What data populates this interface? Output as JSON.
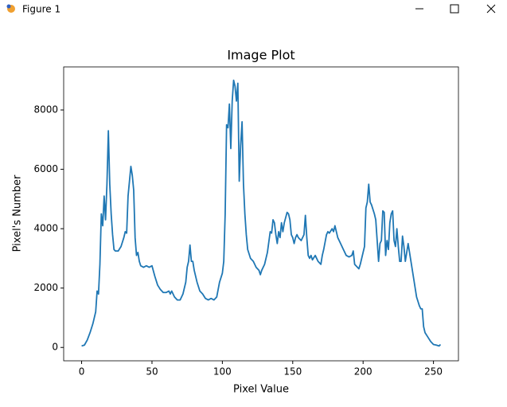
{
  "window": {
    "title": "Figure 1"
  },
  "chart_data": {
    "type": "line",
    "title": "Image Plot",
    "x_label": "Pixel Value",
    "y_label": "Pixel's Number",
    "color": "#1f77b4",
    "x": [
      0,
      2,
      4,
      6,
      8,
      10,
      11,
      12,
      13,
      14,
      15,
      16,
      17,
      18,
      19,
      20,
      21,
      22,
      23,
      24,
      26,
      28,
      30,
      31,
      32,
      33,
      35,
      36,
      37,
      38,
      39,
      40,
      41,
      42,
      44,
      46,
      48,
      50,
      52,
      54,
      56,
      58,
      60,
      62,
      63,
      64,
      66,
      68,
      70,
      72,
      74,
      75,
      76,
      77,
      78,
      79,
      80,
      82,
      84,
      86,
      88,
      90,
      92,
      94,
      96,
      98,
      100,
      101,
      102,
      103,
      104,
      105,
      106,
      107,
      108,
      109,
      110,
      111,
      112,
      113,
      114,
      115,
      116,
      117,
      118,
      120,
      122,
      124,
      126,
      127,
      128,
      130,
      132,
      134,
      135,
      136,
      137,
      138,
      139,
      140,
      141,
      142,
      143,
      144,
      146,
      147,
      148,
      149,
      150,
      151,
      152,
      153,
      154,
      156,
      158,
      159,
      160,
      161,
      162,
      163,
      164,
      166,
      168,
      170,
      171,
      172,
      174,
      175,
      176,
      178,
      179,
      180,
      182,
      184,
      186,
      188,
      190,
      192,
      193,
      194,
      196,
      197,
      198,
      200,
      201,
      202,
      203,
      204,
      205,
      206,
      208,
      209,
      210,
      211,
      212,
      213,
      214,
      215,
      216,
      217,
      218,
      219,
      220,
      221,
      222,
      223,
      224,
      225,
      226,
      227,
      228,
      229,
      230,
      232,
      233,
      234,
      236,
      238,
      240,
      241,
      242,
      243,
      244,
      246,
      248,
      250,
      252,
      254,
      255
    ],
    "values": [
      50,
      80,
      250,
      500,
      800,
      1200,
      1900,
      1800,
      2800,
      4500,
      4100,
      5100,
      4300,
      5500,
      7300,
      5500,
      4500,
      3800,
      3300,
      3250,
      3250,
      3400,
      3700,
      3900,
      3850,
      5100,
      6100,
      5800,
      5300,
      3700,
      3100,
      3200,
      2900,
      2750,
      2700,
      2750,
      2700,
      2750,
      2400,
      2100,
      1950,
      1850,
      1850,
      1900,
      1800,
      1900,
      1700,
      1600,
      1600,
      1800,
      2200,
      2700,
      2900,
      3450,
      2900,
      2900,
      2600,
      2200,
      1900,
      1800,
      1650,
      1600,
      1650,
      1600,
      1700,
      2200,
      2500,
      2900,
      4500,
      7500,
      7400,
      8200,
      6700,
      8300,
      9000,
      8800,
      8300,
      8900,
      5600,
      6800,
      7600,
      5500,
      4500,
      3800,
      3300,
      3000,
      2900,
      2700,
      2600,
      2450,
      2600,
      2800,
      3200,
      3900,
      3850,
      4300,
      4200,
      3800,
      3500,
      3900,
      3700,
      4200,
      3900,
      4200,
      4550,
      4500,
      4300,
      3800,
      3700,
      3500,
      3700,
      3800,
      3700,
      3600,
      3800,
      4450,
      3700,
      3100,
      3000,
      3100,
      2950,
      3100,
      2900,
      2800,
      3100,
      3300,
      3800,
      3900,
      3850,
      4000,
      3900,
      4100,
      3700,
      3500,
      3300,
      3100,
      3050,
      3100,
      3250,
      2800,
      2700,
      2650,
      2800,
      3200,
      3400,
      4700,
      4900,
      5500,
      4900,
      4800,
      4500,
      4300,
      3600,
      2900,
      3500,
      3600,
      4600,
      4550,
      3100,
      3600,
      3300,
      4200,
      4500,
      4600,
      3600,
      3400,
      4000,
      3400,
      2900,
      2900,
      3750,
      3400,
      2900,
      3500,
      3200,
      2900,
      2300,
      1700,
      1400,
      1300,
      1300,
      700,
      500,
      350,
      200,
      100,
      80,
      50,
      100
    ],
    "xlim": [
      -12.75,
      267.75
    ],
    "ylim": [
      -450,
      9450
    ],
    "xticks": [
      0,
      50,
      100,
      150,
      200,
      250
    ],
    "yticks": [
      0,
      2000,
      4000,
      6000,
      8000
    ]
  }
}
